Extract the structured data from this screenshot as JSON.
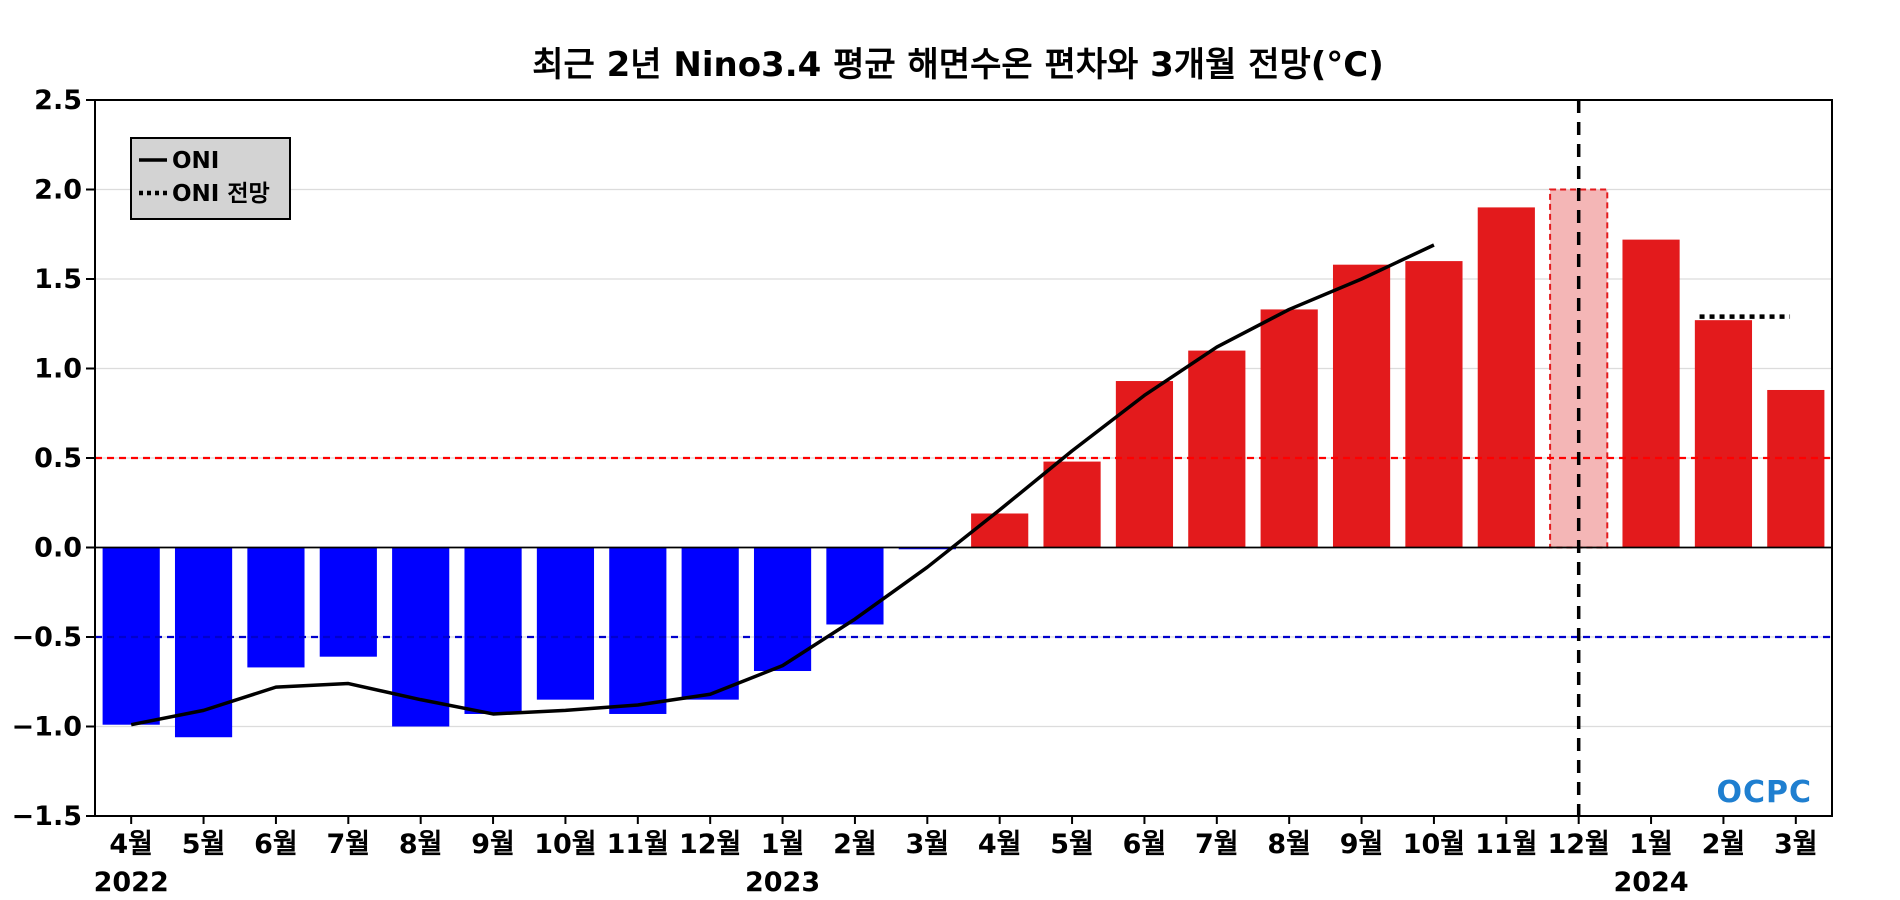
{
  "chart_data": {
    "type": "bar",
    "title": "최근 2년 Nino3.4 평균 해면수온 편차와 3개월 전망(°C)",
    "categories": [
      "4월",
      "5월",
      "6월",
      "7월",
      "8월",
      "9월",
      "10월",
      "11월",
      "12월",
      "1월",
      "2월",
      "3월",
      "4월",
      "5월",
      "6월",
      "7월",
      "8월",
      "9월",
      "10월",
      "11월",
      "12월",
      "1월",
      "2월",
      "3월"
    ],
    "year_labels": [
      {
        "label": "2022",
        "category_index": 0
      },
      {
        "label": "2023",
        "category_index": 9
      },
      {
        "label": "2024",
        "category_index": 21
      }
    ],
    "values": [
      -0.99,
      -1.06,
      -0.67,
      -0.61,
      -1.0,
      -0.93,
      -0.85,
      -0.93,
      -0.85,
      -0.69,
      -0.43,
      -0.01,
      0.19,
      0.48,
      0.93,
      1.1,
      1.33,
      1.58,
      1.6,
      1.9,
      2.0,
      1.72,
      1.27,
      0.88
    ],
    "highlight_index": 20,
    "positive_color": "#e31a1c",
    "negative_color": "#0000ff",
    "highlight_color": "#f4b6b6",
    "oni_line": {
      "name": "ONI",
      "values": [
        -0.99,
        -0.91,
        -0.78,
        -0.76,
        -0.85,
        -0.93,
        -0.91,
        -0.88,
        -0.82,
        -0.66,
        -0.4,
        -0.11,
        0.21,
        0.54,
        0.85,
        1.12,
        1.33,
        1.5,
        1.69
      ]
    },
    "oni_forecast": {
      "name": "ONI 전망",
      "value": 1.29,
      "start_index": 22,
      "end_index": 23
    },
    "thresholds": [
      {
        "value": 0.5,
        "color": "#ff0000"
      },
      {
        "value": -0.5,
        "color": "#0000cc"
      }
    ],
    "current_marker_index": 20,
    "ylim": [
      -1.5,
      2.5
    ],
    "yticks": [
      -1.5,
      -1.0,
      -0.5,
      0.0,
      0.5,
      1.0,
      1.5,
      2.0,
      2.5
    ],
    "ytick_labels": [
      "−1.5",
      "−1.0",
      "−0.5",
      "0.0",
      "0.5",
      "1.0",
      "1.5",
      "2.0",
      "2.5"
    ],
    "xlabel": "",
    "ylabel": "",
    "grid": true,
    "legend_position": "top-left",
    "logo": "OCPC"
  }
}
